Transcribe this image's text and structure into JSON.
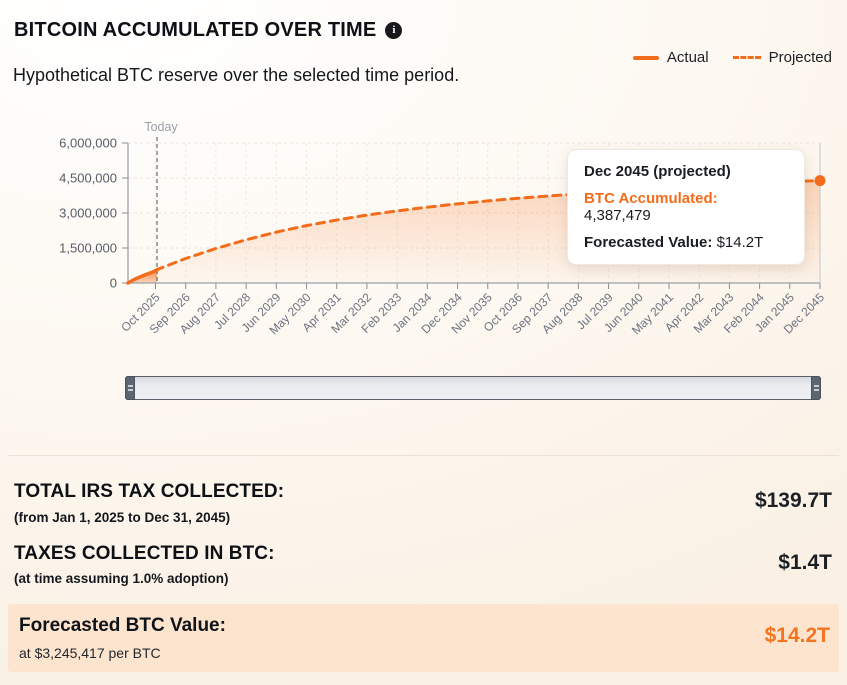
{
  "header": {
    "title": "BITCOIN ACCUMULATED OVER TIME",
    "subtitle": "Hypothetical BTC reserve over the selected time period.",
    "legend": [
      {
        "label": "Actual",
        "style": "solid"
      },
      {
        "label": "Projected",
        "style": "dashed"
      }
    ]
  },
  "chart_data": {
    "type": "line",
    "title": "Bitcoin accumulated over time",
    "today_label": "Today",
    "today_t": 0.05,
    "ylim": [
      0,
      6000000
    ],
    "y_ticks": [
      {
        "label": "0",
        "value": 0
      },
      {
        "label": "1,500,000",
        "value": 1500000
      },
      {
        "label": "3,000,000",
        "value": 3000000
      },
      {
        "label": "4,500,000",
        "value": 4500000
      },
      {
        "label": "6,000,000",
        "value": 6000000
      }
    ],
    "x_tick_labels": [
      "Oct 2025",
      "Sep 2026",
      "Aug 2027",
      "Jul 2028",
      "Jun 2029",
      "May 2030",
      "Apr 2031",
      "Mar 2032",
      "Feb 2033",
      "Jan 2034",
      "Dec 2034",
      "Nov 2035",
      "Oct 2036",
      "Sep 2037",
      "Aug 2038",
      "Jul 2039",
      "Jun 2040",
      "May 2041",
      "Apr 2042",
      "Mar 2043",
      "Feb 2044",
      "Jan 2045",
      "Dec 2045"
    ],
    "series": [
      {
        "name": "Actual",
        "style": "solid",
        "points": [
          {
            "t": -0.91,
            "v": 0
          },
          {
            "t": -0.72,
            "v": 140000
          },
          {
            "t": -0.5,
            "v": 270000
          },
          {
            "t": -0.3,
            "v": 370000
          },
          {
            "t": -0.12,
            "v": 460000
          },
          {
            "t": 0.05,
            "v": 550000
          }
        ]
      },
      {
        "name": "Projected",
        "style": "dashed",
        "values": [
          550000,
          1050000,
          1480000,
          1850000,
          2180000,
          2460000,
          2700000,
          2910000,
          3090000,
          3250000,
          3390000,
          3520000,
          3630000,
          3730000,
          3820000,
          3900000,
          3980000,
          4060000,
          4140000,
          4210000,
          4280000,
          4340000,
          4387479
        ]
      }
    ],
    "end_point": {
      "x_label": "Dec 2045",
      "value": 4387479
    },
    "legend_position": "top-right",
    "grid": true
  },
  "tooltip": {
    "title": "Dec 2045 (projected)",
    "btc_label": "BTC Accumulated:",
    "btc_value": "4,387,479",
    "forecast_label": "Forecasted Value:",
    "forecast_value": "$14.2T"
  },
  "summary": {
    "rows": [
      {
        "label": "TOTAL IRS TAX COLLECTED:",
        "sub": "(from Jan 1, 2025 to Dec 31, 2045)",
        "value": "$139.7T"
      },
      {
        "label": "TAXES COLLECTED IN BTC:",
        "sub": "(at time assuming 1.0% adoption)",
        "value": "$1.4T"
      },
      {
        "label": "Forecasted BTC Value:",
        "sub": "at $3,245,417 per BTC",
        "value": "$14.2T"
      }
    ]
  },
  "colors": {
    "accent": "#f26d1b",
    "orange_value": "#f4741f",
    "highlight_row_bg": "#fce4cf"
  }
}
